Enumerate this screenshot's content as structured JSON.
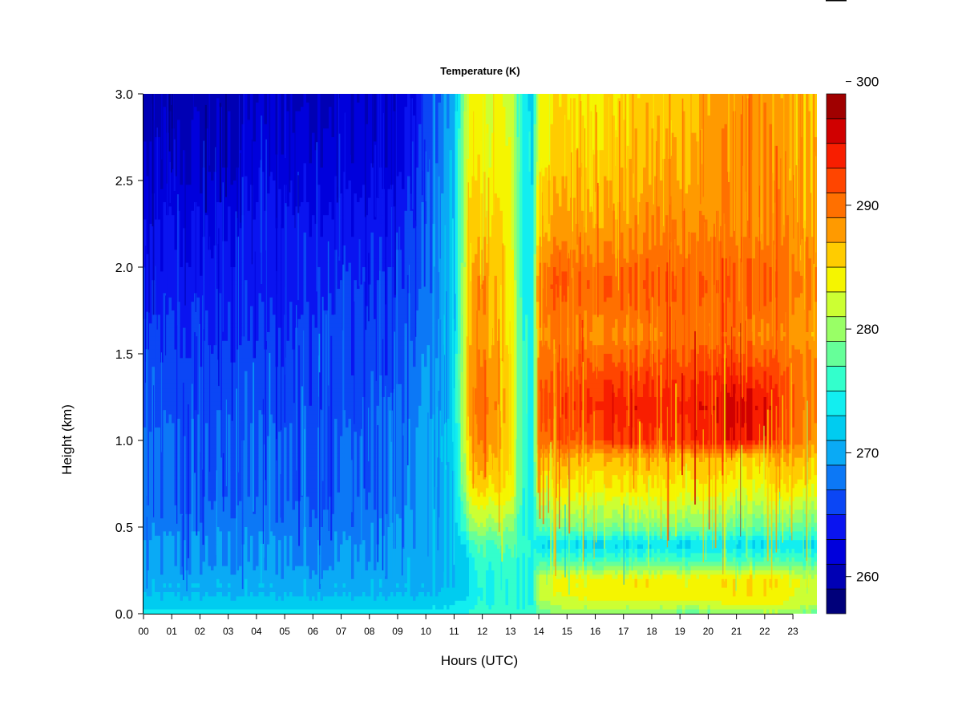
{
  "chart_data": {
    "type": "heatmap",
    "title": "Temperature (K)",
    "xlabel": "Hours (UTC)",
    "ylabel": "Height (km)",
    "x_ticks": [
      "00",
      "01",
      "02",
      "03",
      "04",
      "05",
      "06",
      "07",
      "08",
      "09",
      "10",
      "11",
      "12",
      "13",
      "14",
      "15",
      "16",
      "17",
      "18",
      "19",
      "20",
      "21",
      "22",
      "23"
    ],
    "xlim": [
      0,
      23.85
    ],
    "y_ticks": [
      "0.0",
      "0.5",
      "1.0",
      "1.5",
      "2.0",
      "2.5",
      "3.0"
    ],
    "ylim": [
      0,
      3
    ],
    "colorbar": {
      "min": 258,
      "max": 300,
      "step": 2,
      "tick_labels": [
        "260",
        "270",
        "280",
        "290",
        "300"
      ],
      "tick_values": [
        260,
        270,
        280,
        290,
        300
      ],
      "colors": [
        "#00007a",
        "#0000b4",
        "#0000dc",
        "#0a14f0",
        "#0b46f5",
        "#0c78f6",
        "#0aaaf5",
        "#00ccf0",
        "#12eef0",
        "#33ffcc",
        "#66ff99",
        "#99ff66",
        "#ccff33",
        "#f5f500",
        "#ffcc00",
        "#ff9a00",
        "#ff7000",
        "#ff4500",
        "#f81e00",
        "#d00000",
        "#a00000"
      ]
    },
    "hours": [
      0,
      1,
      2,
      3,
      4,
      5,
      6,
      7,
      8,
      9,
      10,
      11,
      11.5,
      12,
      12.5,
      13,
      13.5,
      13.8,
      14,
      15,
      16,
      17,
      18,
      19,
      20,
      21,
      22,
      22.5,
      23,
      23.85
    ],
    "heights_km": [
      0,
      0.05,
      0.1,
      0.2,
      0.3,
      0.4,
      0.5,
      0.7,
      0.9,
      1.0,
      1.2,
      1.4,
      1.6,
      1.9,
      2.2,
      2.6,
      3.0
    ],
    "temperature_K": [
      [
        275,
        275,
        275,
        275,
        275,
        275,
        275,
        275,
        275,
        275,
        275,
        275,
        276,
        277,
        277,
        277,
        277,
        277,
        279,
        280,
        281,
        280,
        280,
        279,
        279,
        280,
        281,
        281,
        280,
        279
      ],
      [
        273,
        273,
        273,
        273,
        273,
        273,
        273,
        273,
        273,
        273,
        273,
        274,
        275,
        276,
        276,
        276,
        276,
        276,
        281,
        283,
        283,
        283,
        283,
        283,
        283,
        284,
        284,
        284,
        283,
        282
      ],
      [
        272,
        272,
        272,
        272,
        272,
        272,
        272,
        272,
        272,
        272,
        272,
        273,
        274,
        276,
        276,
        276,
        276,
        276,
        283,
        284,
        285,
        285,
        285,
        285,
        285,
        286,
        286,
        285,
        284,
        283
      ],
      [
        271,
        271,
        271,
        271,
        271,
        271,
        271,
        271,
        271,
        271,
        271,
        272,
        274,
        276,
        276,
        276,
        276,
        276,
        283,
        285,
        285,
        285,
        285,
        285,
        285,
        286,
        286,
        285,
        284,
        283
      ],
      [
        270,
        270,
        270,
        270,
        270,
        270,
        270,
        270,
        270,
        271,
        271,
        272,
        274,
        277,
        277,
        277,
        276,
        276,
        278,
        278,
        278,
        278,
        278,
        278,
        278,
        278,
        278,
        278,
        278,
        278
      ],
      [
        270,
        270,
        270,
        270,
        270,
        270,
        270,
        270,
        270,
        270,
        271,
        272,
        276,
        278,
        278,
        278,
        277,
        276,
        274,
        274,
        274,
        274,
        274,
        274,
        274,
        274,
        274,
        274,
        274,
        274
      ],
      [
        269,
        269,
        269,
        269,
        269,
        269,
        269,
        269,
        269,
        270,
        271,
        272,
        280,
        281,
        281,
        280,
        276,
        275,
        279,
        280,
        280,
        280,
        280,
        280,
        280,
        279,
        279,
        279,
        279,
        279
      ],
      [
        268,
        268,
        268,
        268,
        268,
        268,
        268,
        268,
        268,
        268,
        271,
        272,
        284,
        286,
        286,
        285,
        276,
        275,
        284,
        285,
        285,
        285,
        285,
        285,
        285,
        284,
        284,
        285,
        285,
        284
      ],
      [
        268,
        268,
        268,
        268,
        268,
        268,
        268,
        268,
        268,
        268,
        271,
        273,
        286,
        289,
        288,
        286,
        276,
        276,
        288,
        288,
        288,
        288,
        288,
        288,
        288,
        287,
        287,
        288,
        288,
        287
      ],
      [
        268,
        268,
        268,
        268,
        268,
        268,
        268,
        268,
        268,
        268,
        271,
        273,
        287,
        290,
        289,
        286,
        276,
        276,
        292,
        292,
        293,
        294,
        294,
        294,
        295,
        296,
        295,
        293,
        291,
        289
      ],
      [
        267,
        267,
        267,
        267,
        267,
        267,
        267,
        267,
        268,
        268,
        270,
        273,
        288,
        291,
        290,
        286,
        276,
        276,
        293,
        294,
        295,
        295,
        295,
        295,
        296,
        297,
        296,
        294,
        292,
        290
      ],
      [
        267,
        267,
        267,
        267,
        267,
        267,
        267,
        267,
        267,
        267,
        270,
        273,
        288,
        290,
        289,
        286,
        276,
        276,
        292,
        292,
        293,
        293,
        293,
        293,
        294,
        294,
        293,
        292,
        291,
        290
      ],
      [
        266,
        266,
        266,
        266,
        266,
        266,
        267,
        267,
        267,
        267,
        269,
        273,
        287,
        289,
        288,
        285,
        276,
        276,
        290,
        290,
        290,
        290,
        290,
        291,
        291,
        291,
        290,
        290,
        289,
        289
      ],
      [
        265,
        265,
        265,
        265,
        265,
        265,
        266,
        266,
        266,
        266,
        268,
        272,
        287,
        290,
        288,
        285,
        275,
        275,
        292,
        292,
        292,
        292,
        292,
        292,
        292,
        292,
        292,
        291,
        290,
        290
      ],
      [
        264,
        264,
        264,
        264,
        265,
        265,
        265,
        265,
        265,
        265,
        268,
        272,
        286,
        287,
        287,
        284,
        275,
        275,
        288,
        289,
        289,
        289,
        290,
        290,
        290,
        290,
        290,
        290,
        289,
        289
      ],
      [
        262,
        262,
        262,
        262,
        263,
        263,
        263,
        263,
        263,
        263,
        267,
        272,
        285,
        285,
        285,
        284,
        275,
        274,
        286,
        287,
        287,
        287,
        288,
        288,
        289,
        290,
        290,
        289,
        288,
        288
      ],
      [
        261,
        261,
        261,
        261,
        262,
        262,
        262,
        262,
        262,
        262,
        266,
        271,
        284,
        284,
        284,
        283,
        274,
        274,
        285,
        286,
        286,
        286,
        287,
        287,
        288,
        289,
        289,
        288,
        288,
        287
      ]
    ]
  }
}
